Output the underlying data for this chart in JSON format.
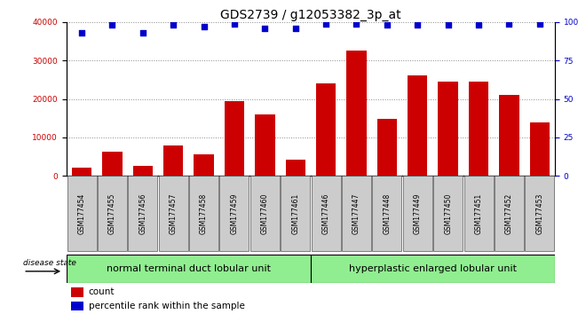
{
  "title": "GDS2739 / g12053382_3p_at",
  "categories": [
    "GSM177454",
    "GSM177455",
    "GSM177456",
    "GSM177457",
    "GSM177458",
    "GSM177459",
    "GSM177460",
    "GSM177461",
    "GSM177446",
    "GSM177447",
    "GSM177448",
    "GSM177449",
    "GSM177450",
    "GSM177451",
    "GSM177452",
    "GSM177453"
  ],
  "counts": [
    2100,
    6200,
    2700,
    7800,
    5500,
    19500,
    16000,
    4200,
    24000,
    32500,
    14800,
    26000,
    24500,
    24500,
    21000,
    14000
  ],
  "percentiles": [
    93,
    98,
    93,
    98,
    97,
    99,
    96,
    96,
    99,
    99,
    98,
    98,
    98,
    98,
    99,
    99
  ],
  "bar_color": "#cc0000",
  "dot_color": "#0000cc",
  "ylim_left": [
    0,
    40000
  ],
  "ylim_right": [
    0,
    100
  ],
  "yticks_left": [
    0,
    10000,
    20000,
    30000,
    40000
  ],
  "yticks_right": [
    0,
    25,
    50,
    75,
    100
  ],
  "group1_label": "normal terminal duct lobular unit",
  "group2_label": "hyperplastic enlarged lobular unit",
  "group1_count": 8,
  "group2_count": 8,
  "disease_state_label": "disease state",
  "legend_count_label": "count",
  "legend_pct_label": "percentile rank within the sample",
  "xticklabel_bg": "#cccccc",
  "group_color": "#90ee90",
  "title_fontsize": 10,
  "tick_fontsize": 6.5,
  "cat_fontsize": 5.5,
  "group_fontsize": 8,
  "legend_fontsize": 7.5
}
